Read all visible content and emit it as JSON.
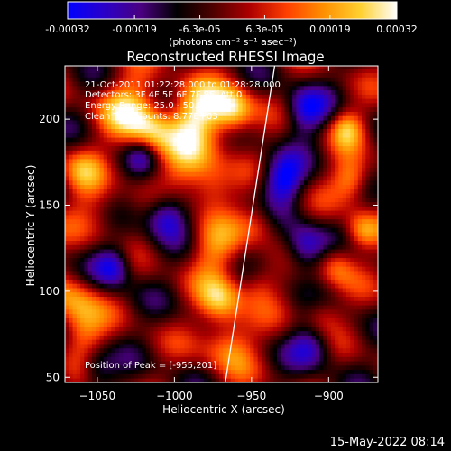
{
  "colorbar": {
    "tick_labels": [
      "-0.00032",
      "-0.00019",
      "-6.3e-05",
      "6.3e-05",
      "0.00019",
      "0.00032"
    ],
    "unit_label": "(photons cm⁻² s⁻¹ asec⁻²)",
    "min": -0.00032,
    "max": 0.00032,
    "palette": [
      "#0000ff",
      "#2a00c8",
      "#4a0080",
      "#000000",
      "#500000",
      "#b00000",
      "#ff4000",
      "#ff9000",
      "#ffd030",
      "#ffffff"
    ]
  },
  "chart_data": {
    "type": "heatmap",
    "title": "Reconstructed RHESSI Image",
    "xlabel": "Heliocentric X (arcsec)",
    "ylabel": "Heliocentric Y (arcsec)",
    "xlim": [
      -1071,
      -868
    ],
    "ylim": [
      47,
      231
    ],
    "x_ticks": [
      -1050,
      -1000,
      -950,
      -900
    ],
    "y_ticks": [
      50,
      100,
      150,
      200
    ],
    "x_tick_labels": [
      "−1050",
      "−1000",
      "−950",
      "−900"
    ],
    "y_tick_labels": [
      "50",
      "100",
      "150",
      "200"
    ],
    "annotations": [
      "21-Oct-2011 01:22:28.000 to 01:28:28.000",
      "Detectors: 3F 4F 5F 6F 7F 8F, Att 0",
      "Energy Range: 25.0 - 50.0 keV",
      "Clean    Total counts: 8.77E+03"
    ],
    "peak_label": "Position of Peak = [-955,201]",
    "peak": [
      -955,
      201
    ],
    "limb_line": [
      [
        -967,
        47
      ],
      [
        -935,
        231
      ]
    ]
  },
  "footer": {
    "timestamp": "15-May-2022 08:14"
  }
}
